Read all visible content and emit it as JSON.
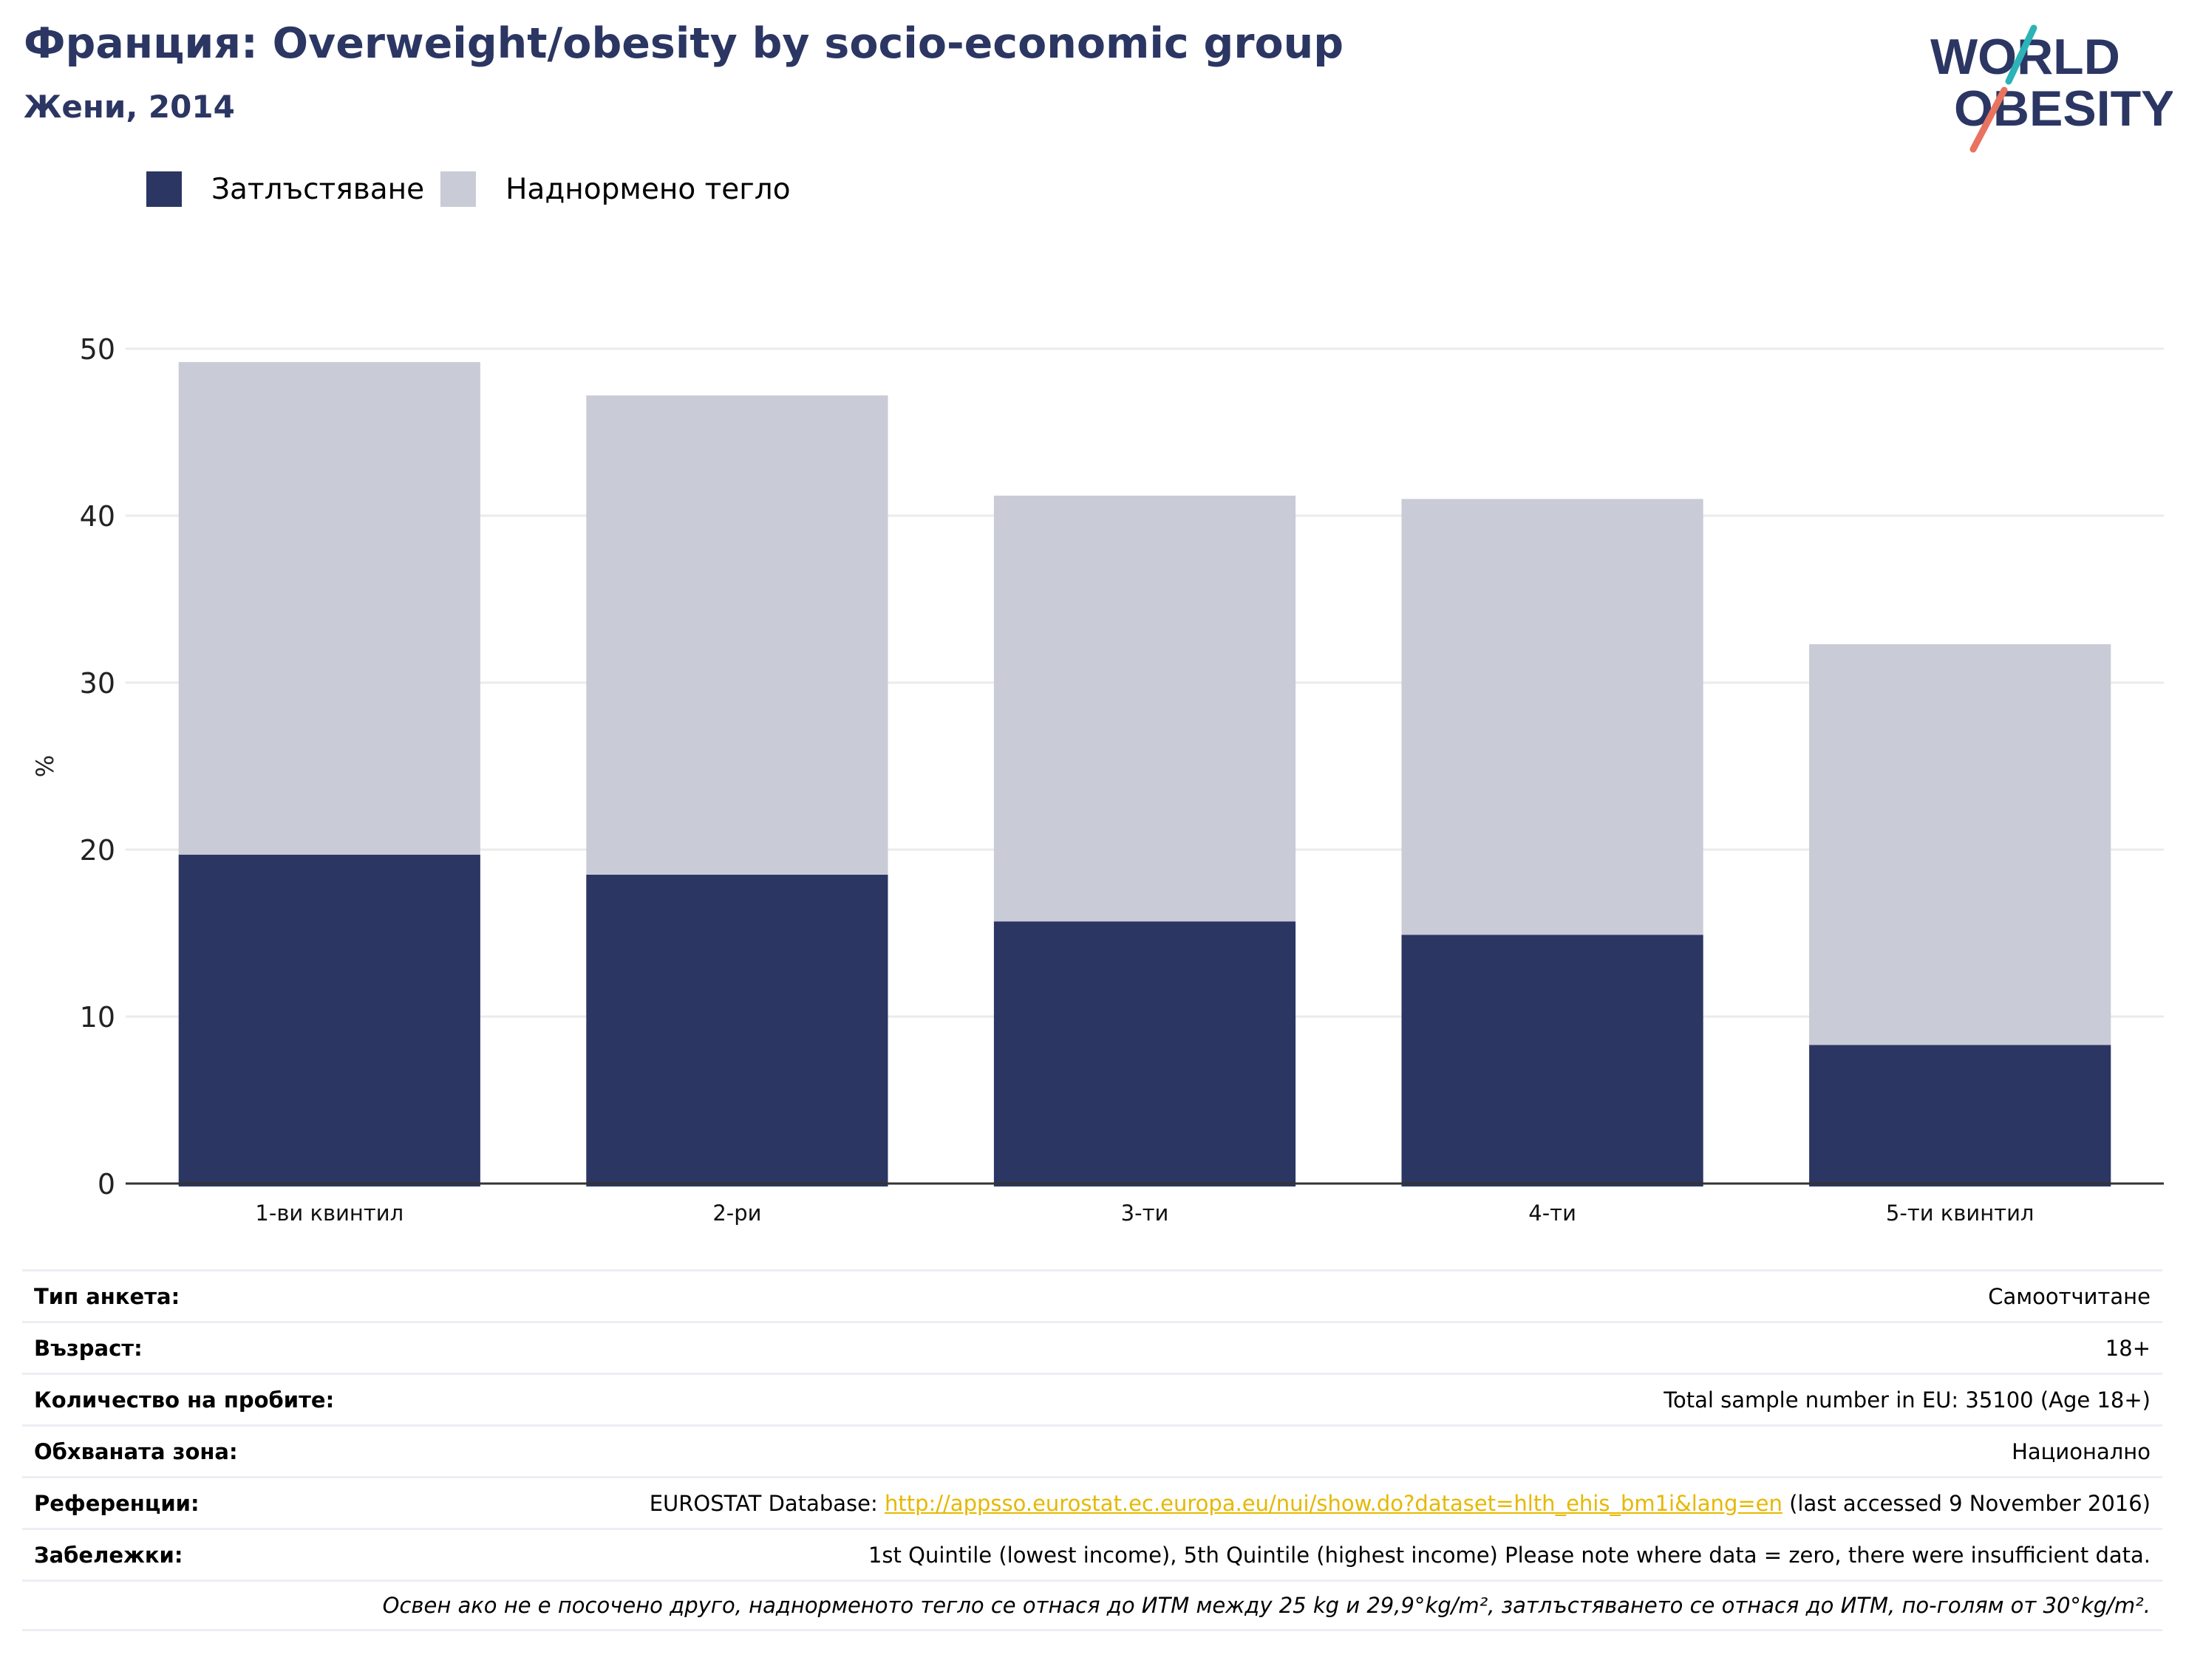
{
  "header": {
    "title": "Франция: Overweight/obesity by socio-economic group",
    "subtitle": "Жени, 2014"
  },
  "logo": {
    "line1": "WORLD",
    "line2": "OBESITY",
    "colors": {
      "text": "#2b3663",
      "slash_top": "#2bb3b8",
      "slash_bottom": "#e8735f"
    }
  },
  "colors": {
    "obesity": "#2b3663",
    "overweight": "#c9cbd7",
    "grid": "#ebebeb",
    "axis": "#333333"
  },
  "chart_data": {
    "type": "bar",
    "stacked": true,
    "categories": [
      "1-ви квинтил",
      "2-ри",
      "3-ти",
      "4-ти",
      "5-ти квинтил"
    ],
    "series": [
      {
        "name": "Затлъстяване",
        "values": [
          19.7,
          18.5,
          15.7,
          14.9,
          8.3
        ]
      },
      {
        "name": "Наднормено тегло",
        "values": [
          29.5,
          28.7,
          25.5,
          26.1,
          24.0
        ]
      }
    ],
    "ylabel": "%",
    "ylim": [
      0,
      50
    ],
    "yticks": [
      0,
      10,
      20,
      30,
      40,
      50
    ],
    "grid": true,
    "legend_position": "top-left"
  },
  "info_table": {
    "survey_type": {
      "label": "Тип анкета:",
      "value": "Самоотчитане"
    },
    "age": {
      "label": "Възраст:",
      "value": "18+"
    },
    "sample_size": {
      "label": "Количество на пробите:",
      "value": "Total sample number in EU: 35100 (Age 18+)"
    },
    "area": {
      "label": "Обхваната зона:",
      "value": "Национално"
    },
    "references": {
      "label": "Референции:",
      "prefix": "EUROSTAT Database: ",
      "link": "http://appsso.eurostat.ec.europa.eu/nui/show.do?dataset=hlth_ehis_bm1i&lang=en",
      "suffix": " (last accessed 9 November 2016)"
    },
    "notes": {
      "label": "Забележки:",
      "value": "1st Quintile (lowest income), 5th Quintile (highest income) Please note where data = zero, there were insufficient data."
    },
    "footnote": "Освен ако не е посочено друго, наднорменото тегло се отнася до ИТМ между 25 kg и 29,9°kg/m², затлъстяването се отнася до ИТМ, по-голям от 30°kg/m²."
  }
}
